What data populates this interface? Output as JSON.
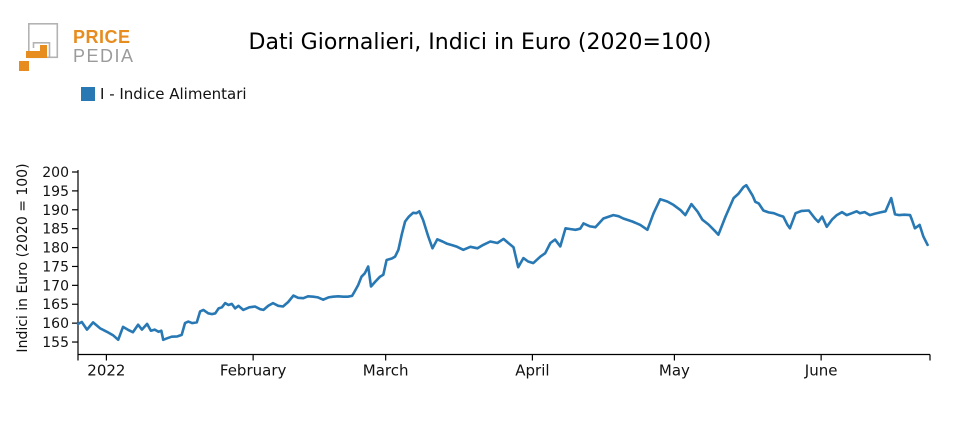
{
  "page": {
    "background": "#ffffff"
  },
  "logo": {
    "line1": "PRICE",
    "line2": "PEDIA",
    "orange": "#E78C1E",
    "gray": "#B3B3B3"
  },
  "header": {
    "title": "Dati Giornalieri, Indici in Euro (2020=100)"
  },
  "legend": {
    "items": [
      {
        "label": "I - Indice Alimentari",
        "color": "#2878B4"
      }
    ]
  },
  "chart_data": {
    "type": "line",
    "title": "Dati Giornalieri, Indici in Euro (2020=100)",
    "xlabel": "",
    "ylabel": "Indici in Euro (2020 = 100)",
    "x_unit": "days since 2021-12-26",
    "xlim": [
      0,
      180
    ],
    "ylim": [
      151.7,
      200
    ],
    "grid": false,
    "legend_position": "top-left",
    "yticks": [
      155,
      160,
      165,
      170,
      175,
      180,
      185,
      190,
      195,
      200
    ],
    "xticks": [
      {
        "day": 6,
        "label": "2022"
      },
      {
        "day": 37,
        "label": "February"
      },
      {
        "day": 65,
        "label": "March"
      },
      {
        "day": 96,
        "label": "April"
      },
      {
        "day": 126,
        "label": "May"
      },
      {
        "day": 157,
        "label": "June"
      }
    ],
    "edge_tick_days": [
      0,
      180
    ],
    "series": [
      {
        "name": "I - Indice Alimentari",
        "color": "#2878B4",
        "points": [
          [
            0,
            159.8
          ],
          [
            0.8,
            160.3
          ],
          [
            1.9,
            158.3
          ],
          [
            3.2,
            160.2
          ],
          [
            4.7,
            158.6
          ],
          [
            6.1,
            157.7
          ],
          [
            7.4,
            156.8
          ],
          [
            8.5,
            155.6
          ],
          [
            9.5,
            159.0
          ],
          [
            10.6,
            158.2
          ],
          [
            11.6,
            157.6
          ],
          [
            12.7,
            159.6
          ],
          [
            13.5,
            158.3
          ],
          [
            14.6,
            159.8
          ],
          [
            15.4,
            158.0
          ],
          [
            16.2,
            158.3
          ],
          [
            17.0,
            157.7
          ],
          [
            17.6,
            158.0
          ],
          [
            18.0,
            155.6
          ],
          [
            18.8,
            156.0
          ],
          [
            19.8,
            156.4
          ],
          [
            21.0,
            156.5
          ],
          [
            21.9,
            156.9
          ],
          [
            22.6,
            160.0
          ],
          [
            23.3,
            160.4
          ],
          [
            24.1,
            160.0
          ],
          [
            25.1,
            160.2
          ],
          [
            25.8,
            163.1
          ],
          [
            26.5,
            163.5
          ],
          [
            27.5,
            162.6
          ],
          [
            28.3,
            162.4
          ],
          [
            29.0,
            162.6
          ],
          [
            29.7,
            163.9
          ],
          [
            30.4,
            164.2
          ],
          [
            31.1,
            165.3
          ],
          [
            31.8,
            164.8
          ],
          [
            32.5,
            165.1
          ],
          [
            33.2,
            163.9
          ],
          [
            33.9,
            164.6
          ],
          [
            34.9,
            163.5
          ],
          [
            36.2,
            164.2
          ],
          [
            37.4,
            164.4
          ],
          [
            38.5,
            163.7
          ],
          [
            39.2,
            163.5
          ],
          [
            40.2,
            164.6
          ],
          [
            41.2,
            165.3
          ],
          [
            42.3,
            164.6
          ],
          [
            43.3,
            164.4
          ],
          [
            44.4,
            165.6
          ],
          [
            45.5,
            167.3
          ],
          [
            46.5,
            166.7
          ],
          [
            47.6,
            166.6
          ],
          [
            48.6,
            167.1
          ],
          [
            49.7,
            167.0
          ],
          [
            50.7,
            166.8
          ],
          [
            51.8,
            166.2
          ],
          [
            52.9,
            166.8
          ],
          [
            53.9,
            167.0
          ],
          [
            55.0,
            167.1
          ],
          [
            56.0,
            167.0
          ],
          [
            57.0,
            167.0
          ],
          [
            57.9,
            167.2
          ],
          [
            58.5,
            168.5
          ],
          [
            59.2,
            170.1
          ],
          [
            59.9,
            172.3
          ],
          [
            60.6,
            173.2
          ],
          [
            61.3,
            175.0
          ],
          [
            61.9,
            169.7
          ],
          [
            62.8,
            171.0
          ],
          [
            63.8,
            172.3
          ],
          [
            64.5,
            172.8
          ],
          [
            65.2,
            176.7
          ],
          [
            66.3,
            177.1
          ],
          [
            67.0,
            177.6
          ],
          [
            67.7,
            179.4
          ],
          [
            68.4,
            183.5
          ],
          [
            69.1,
            186.9
          ],
          [
            69.9,
            188.2
          ],
          [
            70.8,
            189.2
          ],
          [
            71.5,
            189.1
          ],
          [
            72.1,
            189.6
          ],
          [
            72.9,
            187.3
          ],
          [
            74.0,
            182.9
          ],
          [
            74.9,
            179.8
          ],
          [
            75.9,
            182.2
          ],
          [
            77.0,
            181.6
          ],
          [
            78.0,
            181.0
          ],
          [
            79.1,
            180.6
          ],
          [
            80.1,
            180.2
          ],
          [
            81.4,
            179.4
          ],
          [
            82.9,
            180.2
          ],
          [
            84.4,
            179.8
          ],
          [
            85.6,
            180.7
          ],
          [
            87.1,
            181.6
          ],
          [
            88.6,
            181.2
          ],
          [
            89.9,
            182.3
          ],
          [
            90.9,
            181.2
          ],
          [
            92.0,
            180.1
          ],
          [
            93.0,
            174.8
          ],
          [
            94.1,
            177.2
          ],
          [
            95.1,
            176.3
          ],
          [
            96.2,
            175.9
          ],
          [
            97.7,
            177.6
          ],
          [
            98.7,
            178.5
          ],
          [
            99.8,
            181.2
          ],
          [
            100.8,
            182.1
          ],
          [
            101.9,
            180.3
          ],
          [
            103.0,
            185.1
          ],
          [
            104.1,
            184.9
          ],
          [
            105.1,
            184.7
          ],
          [
            106.1,
            185.0
          ],
          [
            106.8,
            186.4
          ],
          [
            108.2,
            185.6
          ],
          [
            109.3,
            185.4
          ],
          [
            111.0,
            187.7
          ],
          [
            113.1,
            188.6
          ],
          [
            114.2,
            188.3
          ],
          [
            115.2,
            187.7
          ],
          [
            117.1,
            186.9
          ],
          [
            118.8,
            186.0
          ],
          [
            120.3,
            184.7
          ],
          [
            121.6,
            189.1
          ],
          [
            123.0,
            192.8
          ],
          [
            124.5,
            192.2
          ],
          [
            125.8,
            191.3
          ],
          [
            127.3,
            189.9
          ],
          [
            128.3,
            188.6
          ],
          [
            129.6,
            191.5
          ],
          [
            130.9,
            189.5
          ],
          [
            131.9,
            187.4
          ],
          [
            133.2,
            186.1
          ],
          [
            134.7,
            184.2
          ],
          [
            135.3,
            183.4
          ],
          [
            136.8,
            188.2
          ],
          [
            138.5,
            193.1
          ],
          [
            139.5,
            194.2
          ],
          [
            140.6,
            196.0
          ],
          [
            141.2,
            196.5
          ],
          [
            142.5,
            193.8
          ],
          [
            143.1,
            192.1
          ],
          [
            143.8,
            191.7
          ],
          [
            144.8,
            189.8
          ],
          [
            145.9,
            189.3
          ],
          [
            147.0,
            189.1
          ],
          [
            148.0,
            188.6
          ],
          [
            149.0,
            188.2
          ],
          [
            149.9,
            186.0
          ],
          [
            150.4,
            185.1
          ],
          [
            151.6,
            189.1
          ],
          [
            152.9,
            189.7
          ],
          [
            154.4,
            189.8
          ],
          [
            155.7,
            187.7
          ],
          [
            156.4,
            186.8
          ],
          [
            157.2,
            188.2
          ],
          [
            158.2,
            185.5
          ],
          [
            159.3,
            187.4
          ],
          [
            160.3,
            188.6
          ],
          [
            161.4,
            189.4
          ],
          [
            162.4,
            188.6
          ],
          [
            163.5,
            189.1
          ],
          [
            164.5,
            189.6
          ],
          [
            165.2,
            189.1
          ],
          [
            166.2,
            189.4
          ],
          [
            167.3,
            188.6
          ],
          [
            168.4,
            189.0
          ],
          [
            169.5,
            189.3
          ],
          [
            170.6,
            189.6
          ],
          [
            171.8,
            193.1
          ],
          [
            172.6,
            188.8
          ],
          [
            173.5,
            188.6
          ],
          [
            174.6,
            188.7
          ],
          [
            175.8,
            188.6
          ],
          [
            176.2,
            187.3
          ],
          [
            176.8,
            185.1
          ],
          [
            177.8,
            186.0
          ],
          [
            178.6,
            182.9
          ],
          [
            179.5,
            180.7
          ]
        ]
      }
    ]
  }
}
